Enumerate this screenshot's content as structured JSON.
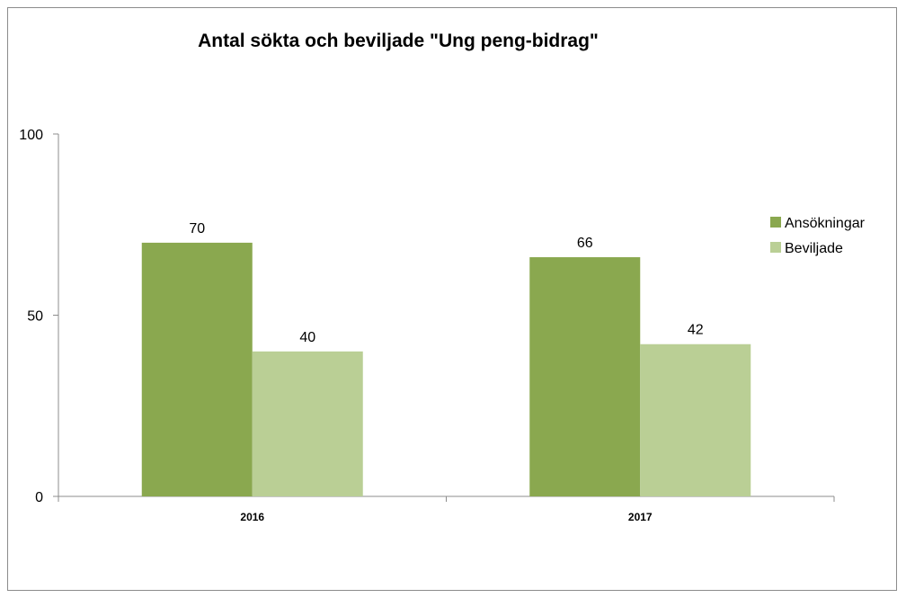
{
  "chart_data": {
    "type": "bar",
    "title": "Antal sökta och beviljade \"Ung peng-bidrag\"",
    "xlabel": "",
    "ylabel": "",
    "categories": [
      "2016",
      "2017"
    ],
    "series": [
      {
        "name": "Ansökningar",
        "values": [
          70,
          66
        ],
        "color": "#8aa84f"
      },
      {
        "name": "Beviljade",
        "values": [
          40,
          42
        ],
        "color": "#bacf95"
      }
    ],
    "ylim": [
      0,
      100
    ],
    "yticks": [
      0,
      50,
      100
    ],
    "grid": false,
    "legend_position": "right"
  }
}
